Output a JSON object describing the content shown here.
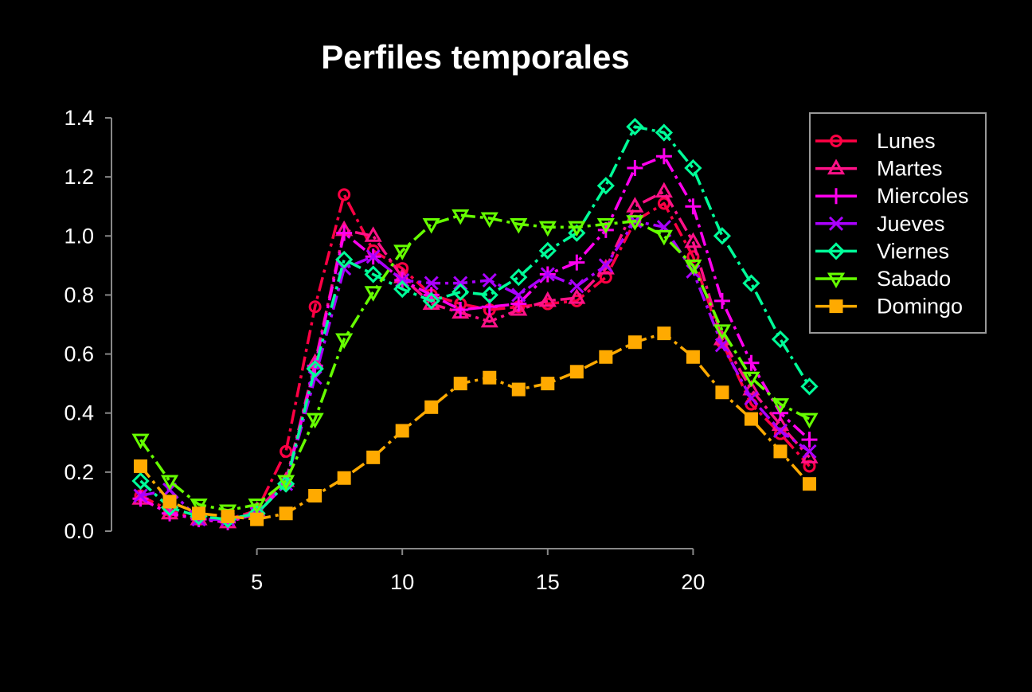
{
  "chart_data": {
    "type": "line",
    "title": "Perfiles temporales",
    "xlabel": "",
    "ylabel": "",
    "x": [
      1,
      2,
      3,
      4,
      5,
      6,
      7,
      8,
      9,
      10,
      11,
      12,
      13,
      14,
      15,
      16,
      17,
      18,
      19,
      20,
      21,
      22,
      23,
      24
    ],
    "xlim": [
      0,
      25
    ],
    "ylim": [
      0.0,
      1.4
    ],
    "x_ticks": [
      "5",
      "10",
      "15",
      "20"
    ],
    "y_ticks": [
      "0.0",
      "0.2",
      "0.4",
      "0.6",
      "0.8",
      "1.0",
      "1.2",
      "1.4"
    ],
    "grid": false,
    "legend_position": "top-right",
    "background_color": "#000000",
    "series": [
      {
        "name": "Lunes",
        "color": "#ff0044",
        "marker": "circle",
        "values": [
          0.12,
          0.07,
          0.04,
          0.04,
          0.07,
          0.27,
          0.76,
          1.14,
          0.95,
          0.89,
          0.8,
          0.77,
          0.75,
          0.76,
          0.77,
          0.78,
          0.86,
          1.05,
          1.11,
          0.93,
          0.64,
          0.43,
          0.33,
          0.22
        ]
      },
      {
        "name": "Martes",
        "color": "#ff1188",
        "marker": "triangle-up",
        "values": [
          0.11,
          0.06,
          0.04,
          0.03,
          0.07,
          0.17,
          0.57,
          1.02,
          1.0,
          0.86,
          0.77,
          0.74,
          0.71,
          0.75,
          0.78,
          0.79,
          0.89,
          1.1,
          1.15,
          0.98,
          0.65,
          0.48,
          0.36,
          0.25
        ]
      },
      {
        "name": "Miercoles",
        "color": "#ff00ee",
        "marker": "plus",
        "values": [
          0.11,
          0.06,
          0.04,
          0.03,
          0.06,
          0.16,
          0.56,
          1.01,
          0.93,
          0.85,
          0.8,
          0.75,
          0.76,
          0.77,
          0.87,
          0.91,
          1.02,
          1.23,
          1.27,
          1.1,
          0.78,
          0.57,
          0.4,
          0.31
        ]
      },
      {
        "name": "Jueves",
        "color": "#aa00ff",
        "marker": "x",
        "values": [
          0.12,
          0.14,
          0.04,
          0.04,
          0.06,
          0.16,
          0.52,
          0.89,
          0.93,
          0.85,
          0.84,
          0.84,
          0.85,
          0.8,
          0.87,
          0.83,
          0.9,
          1.05,
          1.03,
          0.88,
          0.63,
          0.45,
          0.34,
          0.27
        ]
      },
      {
        "name": "Viernes",
        "color": "#00ff99",
        "marker": "diamond",
        "values": [
          0.17,
          0.08,
          0.05,
          0.04,
          0.06,
          0.16,
          0.55,
          0.92,
          0.87,
          0.82,
          0.78,
          0.81,
          0.8,
          0.86,
          0.95,
          1.01,
          1.17,
          1.37,
          1.35,
          1.23,
          1.0,
          0.84,
          0.65,
          0.49
        ]
      },
      {
        "name": "Sabado",
        "color": "#66ff00",
        "marker": "triangle-down",
        "values": [
          0.31,
          0.17,
          0.09,
          0.07,
          0.09,
          0.17,
          0.38,
          0.65,
          0.81,
          0.95,
          1.04,
          1.07,
          1.06,
          1.04,
          1.03,
          1.03,
          1.04,
          1.05,
          1.0,
          0.9,
          0.68,
          0.52,
          0.43,
          0.38
        ]
      },
      {
        "name": "Domingo",
        "color": "#ffaa00",
        "marker": "square",
        "values": [
          0.22,
          0.1,
          0.06,
          0.05,
          0.04,
          0.06,
          0.12,
          0.18,
          0.25,
          0.34,
          0.42,
          0.5,
          0.52,
          0.48,
          0.5,
          0.54,
          0.59,
          0.64,
          0.67,
          0.59,
          0.47,
          0.38,
          0.27,
          0.16
        ]
      }
    ]
  }
}
